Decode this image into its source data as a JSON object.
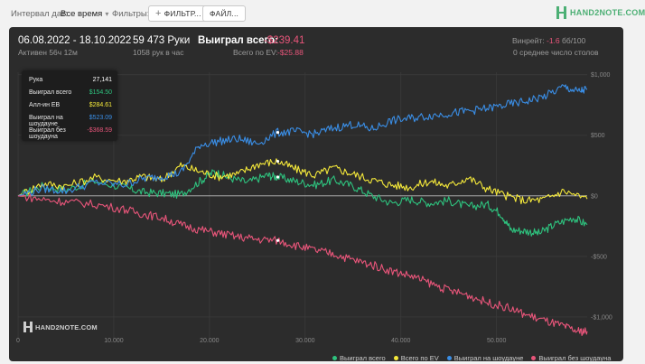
{
  "toolbar": {
    "date_interval_label": "Интервал дат:",
    "date_interval_value": "Все время",
    "filters_label": "Фильтры:",
    "filter_button": "ФИЛЬТР...",
    "file_button": "ФАЙЛ...",
    "brand": "HAND2NOTE.COM"
  },
  "stats": {
    "date_range": "06.08.2022 - 18.10.2022",
    "active": "Активен 56ч 12м",
    "hands": "59 473 Руки",
    "hands_rate": "1058 рук в час",
    "total_won_label": "Выиграл всего:",
    "total_won_value": "-$239.41",
    "ev_label": "Всего по EV:",
    "ev_value": "-$25.88",
    "winrate_label": "Винрейт:",
    "winrate_value": "-1.6",
    "winrate_unit": "бб/100",
    "tables": "0 среднее число столов"
  },
  "tooltip": {
    "rows": [
      {
        "label": "Рука",
        "value": "27,141",
        "color": "#ffffff"
      },
      {
        "label": "Выиграл всего",
        "value": "$154.50",
        "color": "#2ec27e"
      },
      {
        "label": "Алл-ин EB",
        "value": "$284.61",
        "color": "#f5e93a"
      },
      {
        "label": "Выиграл на шоудауне",
        "value": "$523.09",
        "color": "#3a8ee6"
      },
      {
        "label": "Выиграл без шоудауна",
        "value": "-$368.59",
        "color": "#e8557a"
      }
    ]
  },
  "watermark": "HAND2NOTE.COM",
  "chart_data": {
    "type": "line",
    "x_ticks": [
      0,
      10000,
      20000,
      30000,
      40000,
      50000
    ],
    "x_tick_labels": [
      "0",
      "10.000",
      "20.000",
      "30.000",
      "40.000",
      "50.000"
    ],
    "y_ticks": [
      1000,
      500,
      0,
      -500,
      -1000
    ],
    "y_tick_labels": [
      "$1,000",
      "$500",
      "$0",
      "-$500",
      "-$1,000"
    ],
    "xlim": [
      0,
      59473
    ],
    "ylim": [
      -1180,
      1020
    ],
    "grid": true,
    "series": [
      {
        "name": "Выиграл всего",
        "color": "#2ec27e",
        "x": [
          0,
          2500,
          5000,
          8000,
          11000,
          13000,
          15000,
          17000,
          19000,
          20500,
          22000,
          24000,
          26000,
          27141,
          29000,
          31000,
          33000,
          35000,
          37000,
          39000,
          41000,
          43000,
          45000,
          47000,
          49000,
          50500,
          51500,
          53000,
          54500,
          56000,
          58000,
          59473
        ],
        "values": [
          0,
          80,
          50,
          120,
          70,
          30,
          20,
          10,
          120,
          200,
          150,
          110,
          170,
          155,
          120,
          90,
          130,
          80,
          0,
          -60,
          -30,
          -60,
          -40,
          -90,
          -70,
          -150,
          -280,
          -290,
          -310,
          -240,
          -180,
          -239
        ]
      },
      {
        "name": "Всего по EV",
        "color": "#f5e93a",
        "x": [
          0,
          2500,
          5000,
          8000,
          11000,
          13000,
          15000,
          17000,
          19000,
          21000,
          23000,
          25000,
          27141,
          29000,
          31000,
          33000,
          35000,
          37000,
          39000,
          41000,
          43000,
          45000,
          47000,
          49000,
          51000,
          53000,
          55000,
          57000,
          59473
        ],
        "values": [
          0,
          100,
          80,
          150,
          120,
          160,
          130,
          250,
          200,
          160,
          180,
          260,
          285,
          220,
          170,
          230,
          180,
          130,
          90,
          70,
          120,
          80,
          150,
          60,
          0,
          -40,
          -30,
          40,
          -26
        ]
      },
      {
        "name": "Выиграл на шоудауне",
        "color": "#3a8ee6",
        "x": [
          0,
          2500,
          5000,
          8000,
          11000,
          13000,
          15000,
          17000,
          19000,
          21000,
          23000,
          25000,
          27141,
          29000,
          31000,
          33000,
          35000,
          37000,
          39000,
          41000,
          43000,
          45000,
          47000,
          49000,
          51000,
          53000,
          55000,
          57000,
          58500,
          59473
        ],
        "values": [
          0,
          60,
          40,
          110,
          90,
          140,
          160,
          190,
          420,
          450,
          470,
          430,
          523,
          530,
          510,
          560,
          590,
          550,
          620,
          640,
          660,
          680,
          700,
          720,
          750,
          780,
          820,
          900,
          860,
          880
        ]
      },
      {
        "name": "Выиграл без шоудауна",
        "color": "#e8557a",
        "x": [
          0,
          2500,
          5000,
          8000,
          11000,
          13000,
          15000,
          17000,
          19000,
          21000,
          23000,
          25000,
          27141,
          29000,
          31000,
          33000,
          35000,
          37000,
          39000,
          41000,
          43000,
          45000,
          47000,
          49000,
          51000,
          53000,
          55000,
          57000,
          58500,
          59473
        ],
        "values": [
          0,
          -30,
          -50,
          -70,
          -110,
          -150,
          -180,
          -240,
          -280,
          -310,
          -340,
          -360,
          -369,
          -410,
          -450,
          -480,
          -530,
          -570,
          -620,
          -660,
          -720,
          -780,
          -820,
          -880,
          -920,
          -980,
          -1030,
          -1080,
          -1120,
          -1118
        ]
      }
    ]
  }
}
